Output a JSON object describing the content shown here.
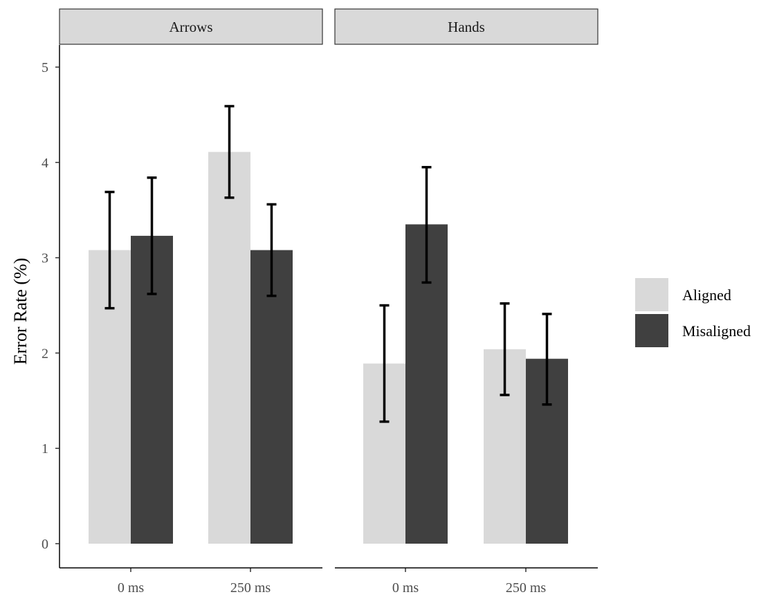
{
  "chart_data": {
    "type": "bar",
    "ylabel": "Error Rate (%)",
    "xlabel": "",
    "ylim": [
      0,
      5.2
    ],
    "y_ticks": [
      "0",
      "1",
      "2",
      "3",
      "4",
      "5"
    ],
    "grid": false,
    "legend_position": "right",
    "colors": {
      "Aligned": "#d9d9d9",
      "Misaligned": "#404040",
      "error_bar": "#000000",
      "strip_bg": "#d9d9d9"
    },
    "panels": [
      {
        "label": "Arrows",
        "categories": [
          "0 ms",
          "250 ms"
        ],
        "series": [
          {
            "name": "Aligned",
            "values": [
              3.08,
              4.11
            ],
            "err_low": [
              2.47,
              3.63
            ],
            "err_high": [
              3.69,
              4.59
            ]
          },
          {
            "name": "Misaligned",
            "values": [
              3.23,
              3.08
            ],
            "err_low": [
              2.62,
              2.6
            ],
            "err_high": [
              3.84,
              3.56
            ]
          }
        ]
      },
      {
        "label": "Hands",
        "categories": [
          "0 ms",
          "250 ms"
        ],
        "series": [
          {
            "name": "Aligned",
            "values": [
              1.89,
              2.04
            ],
            "err_low": [
              1.28,
              1.56
            ],
            "err_high": [
              2.5,
              2.52
            ]
          },
          {
            "name": "Misaligned",
            "values": [
              3.35,
              1.94
            ],
            "err_low": [
              2.74,
              1.46
            ],
            "err_high": [
              3.95,
              2.41
            ]
          }
        ]
      }
    ],
    "legend": [
      "Aligned",
      "Misaligned"
    ]
  }
}
